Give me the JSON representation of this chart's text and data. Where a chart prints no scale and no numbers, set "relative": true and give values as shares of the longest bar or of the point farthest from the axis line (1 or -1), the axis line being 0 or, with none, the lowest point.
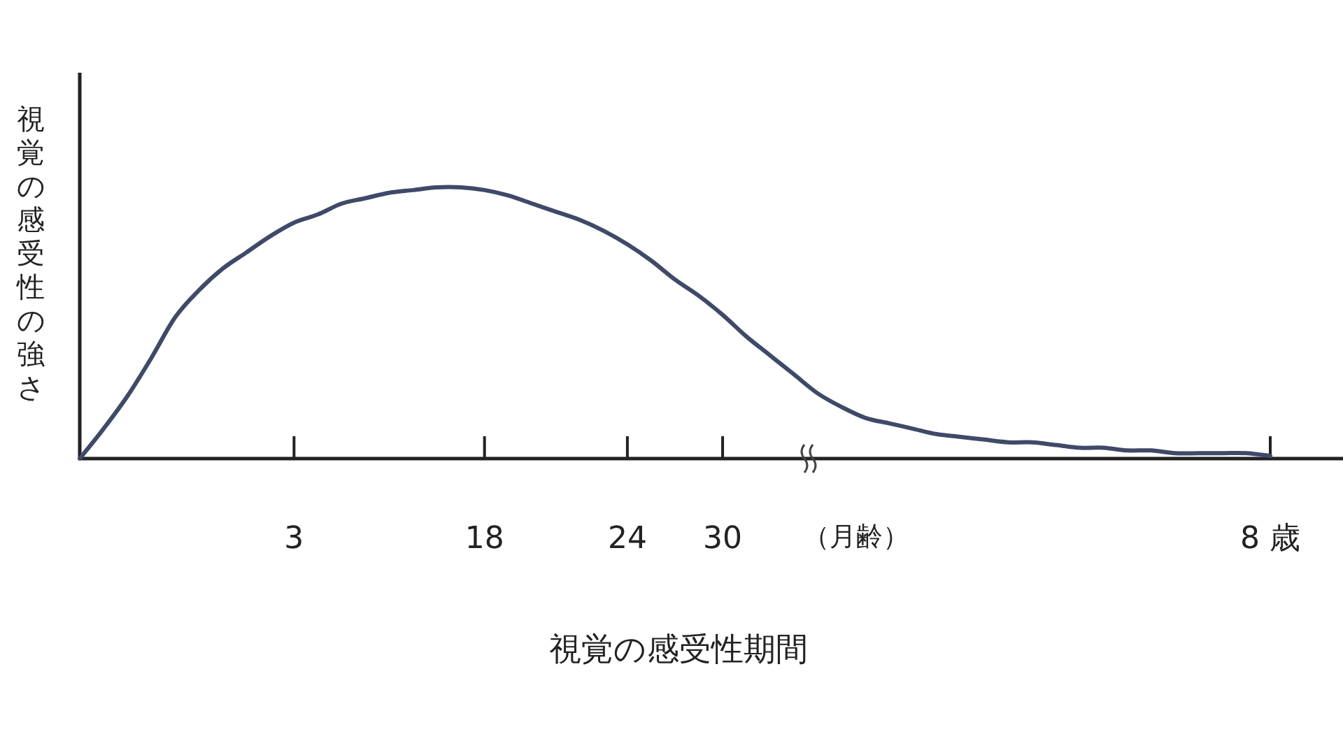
{
  "chart_data": {
    "type": "line",
    "relative": true,
    "color": "#3f4a68",
    "xlabel": "視覚の感受性期間",
    "ylabel": "視覚の感受性の強さ",
    "annotations": [
      "（月齢）"
    ],
    "categories": [
      null,
      null,
      null,
      null,
      null,
      null,
      null,
      null,
      null,
      "3",
      null,
      null,
      null,
      null,
      null,
      null,
      null,
      "18",
      null,
      null,
      null,
      null,
      null,
      "24",
      null,
      null,
      null,
      "30",
      null,
      null,
      null,
      null,
      null,
      null,
      null,
      null,
      null,
      null,
      null,
      null,
      null,
      null,
      null,
      null,
      null,
      null,
      null,
      null,
      null,
      null,
      "8 歳"
    ],
    "values": [
      0,
      0.11,
      0.23,
      0.37,
      0.52,
      0.62,
      0.7,
      0.76,
      0.82,
      0.87,
      0.9,
      0.94,
      0.96,
      0.98,
      0.99,
      1,
      1,
      0.99,
      0.97,
      0.94,
      0.91,
      0.88,
      0.84,
      0.79,
      0.73,
      0.66,
      0.6,
      0.53,
      0.45,
      0.38,
      0.31,
      0.24,
      0.19,
      0.15,
      0.13,
      0.11,
      0.09,
      0.08,
      0.07,
      0.06,
      0.06,
      0.05,
      0.04,
      0.04,
      0.03,
      0.03,
      0.02,
      0.02,
      0.02,
      0.02,
      0.01
    ]
  }
}
